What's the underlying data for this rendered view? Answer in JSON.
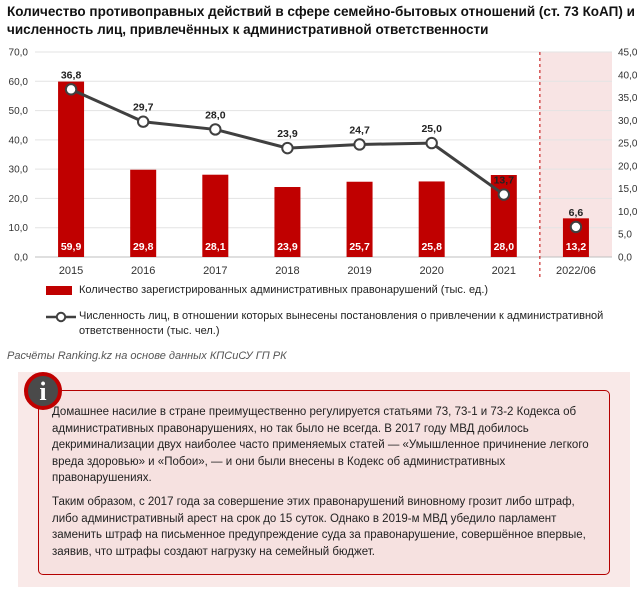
{
  "title": "Количество противоправных действий в сфере семейно-бытовых отношений (ст. 73 КоАП) и численность лиц, привлечённых к административной ответственности",
  "colors": {
    "bar": "#c00000",
    "line": "#404040",
    "forecast_shade": "#f8e4e4",
    "divider": "#c00000"
  },
  "chart_data": {
    "type": "bar",
    "categories": [
      "2015",
      "2016",
      "2017",
      "2018",
      "2019",
      "2020",
      "2021",
      "2022/06"
    ],
    "series": [
      {
        "name": "Количество зарегистрированных административных правонарушений (тыс. ед.)",
        "type": "bar",
        "axis": "left",
        "values": [
          59.9,
          29.8,
          28.1,
          23.9,
          25.7,
          25.8,
          28.0,
          13.2
        ],
        "labels": [
          "59,9",
          "29,8",
          "28,1",
          "23,9",
          "25,7",
          "25,8",
          "28,0",
          "13,2"
        ]
      },
      {
        "name": "Численность лиц, в отношении которых вынесены постановления о привлечении к административной ответственности (тыс. чел.)",
        "type": "line",
        "axis": "right",
        "values": [
          36.8,
          29.7,
          28.0,
          23.9,
          24.7,
          25.0,
          13.7,
          6.6
        ],
        "labels": [
          "36,8",
          "29,7",
          "28,0",
          "23,9",
          "24,7",
          "25,0",
          "13,7",
          "6,6"
        ]
      }
    ],
    "y_left": {
      "min": 0,
      "max": 70,
      "ticks": [
        "0,0",
        "10,0",
        "20,0",
        "30,0",
        "40,0",
        "50,0",
        "60,0",
        "70,0"
      ]
    },
    "y_right": {
      "min": 0,
      "max": 45,
      "ticks": [
        "0,0",
        "5,0",
        "10,0",
        "15,0",
        "20,0",
        "25,0",
        "30,0",
        "35,0",
        "40,0",
        "45,0"
      ]
    },
    "grid": true,
    "legend_position": "bottom",
    "highlighted_category": "2022/06"
  },
  "legend": {
    "bar_label": "Количество зарегистрированных административных правонарушений (тыс. ед.)",
    "line_label": "Численность лиц, в отношении которых вынесены постановления о привлечении к административной ответственности (тыс. чел.)"
  },
  "source": "Расчёты Ranking.kz на основе данных КПСиСУ ГП РК",
  "info": {
    "icon": "info-icon",
    "badge_glyph": "i",
    "paragraph1": "Домашнее насилие в стране преимущественно регулируется статьями 73, 73-1 и 73-2 Кодекса об административных правонарушениях, но так было не всегда. В 2017 году МВД добилось декриминализации двух наиболее часто применяемых статей — «Умышленное причинение легкого вреда здоровью» и «Побои», — и они были внесены в Кодекс об административных правонарушениях.",
    "paragraph2": "Таким образом, с 2017 года за совершение этих правонарушений виновному грозит либо штраф, либо административный арест на срок до 15 суток. Однако в 2019-м МВД убедило парламент заменить штраф на письменное предупреждение суда за правонарушение, совершённое впервые, заявив, что штрафы создают нагрузку на семейный бюджет."
  }
}
